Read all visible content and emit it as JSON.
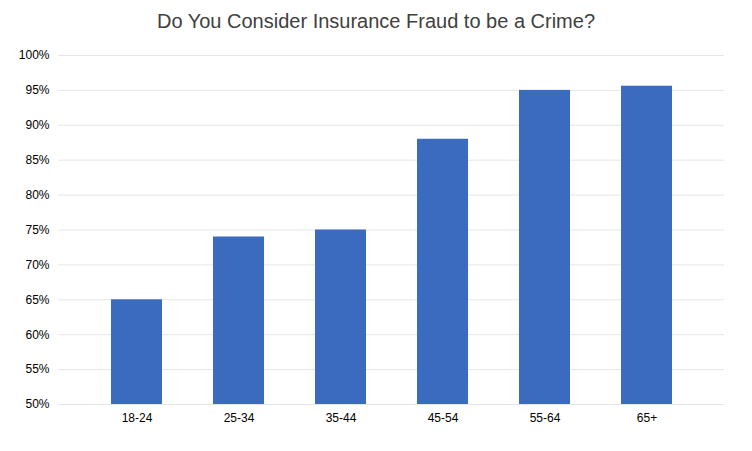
{
  "chart_data": {
    "type": "bar",
    "title": "Do You Consider Insurance Fraud to be a Crime?",
    "categories": [
      "18-24",
      "25-34",
      "35-44",
      "45-54",
      "55-64",
      "65+"
    ],
    "values": [
      0.65,
      0.74,
      0.75,
      0.88,
      0.95,
      0.956
    ],
    "color": "#3A6BBF",
    "ylim": [
      0.5,
      1.0
    ],
    "yticks": [
      {
        "value": 0.5,
        "label": "50%"
      },
      {
        "value": 0.55,
        "label": "55%"
      },
      {
        "value": 0.6,
        "label": "60%"
      },
      {
        "value": 0.65,
        "label": "65%"
      },
      {
        "value": 0.7,
        "label": "70%"
      },
      {
        "value": 0.75,
        "label": "75%"
      },
      {
        "value": 0.8,
        "label": "80%"
      },
      {
        "value": 0.85,
        "label": "85%"
      },
      {
        "value": 0.9,
        "label": "90%"
      },
      {
        "value": 0.95,
        "label": "95%"
      },
      {
        "value": 1.0,
        "label": "100%"
      }
    ],
    "grid": true
  }
}
